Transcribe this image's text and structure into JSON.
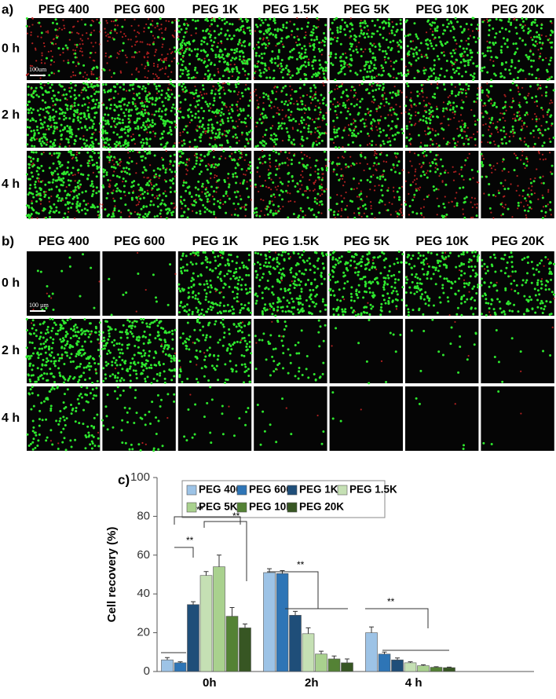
{
  "panel_a": {
    "label": "a)",
    "columns": [
      "PEG 400",
      "PEG 600",
      "PEG 1K",
      "PEG 1.5K",
      "PEG 5K",
      "PEG 10K",
      "PEG 20K"
    ],
    "rows": [
      "0 h",
      "2 h",
      "4 h"
    ],
    "scale_bar": "100um"
  },
  "panel_b": {
    "label": "b)",
    "columns": [
      "PEG 400",
      "PEG 600",
      "PEG 1K",
      "PEG 1.5K",
      "PEG 5K",
      "PEG 10K",
      "PEG 20K"
    ],
    "rows": [
      "0 h",
      "2 h",
      "4 h"
    ],
    "scale_bar": "100 µm"
  },
  "chart_data": {
    "type": "bar",
    "label": "c)",
    "y_label": "Cell recovery (%)",
    "categories": [
      "0h",
      "2h",
      "4 h"
    ],
    "series": [
      {
        "name": "PEG 400",
        "color": "#9dc3e6",
        "values": [
          6,
          51,
          20
        ],
        "errors": [
          1.2,
          2,
          3
        ]
      },
      {
        "name": "PEG 600",
        "color": "#2e75b6",
        "values": [
          4.5,
          50.5,
          9
        ],
        "errors": [
          0.5,
          1.5,
          1
        ]
      },
      {
        "name": "PEG 1K",
        "color": "#1f4e79",
        "values": [
          34.5,
          29,
          6
        ],
        "errors": [
          1.5,
          2,
          1
        ]
      },
      {
        "name": "PEG 1.5K",
        "color": "#c5e0b4",
        "values": [
          49.5,
          19.5,
          4.5
        ],
        "errors": [
          2,
          3,
          0.5
        ]
      },
      {
        "name": "PEG 5K",
        "color": "#a9d18e",
        "values": [
          54,
          9,
          3
        ],
        "errors": [
          6,
          1.5,
          0.5
        ]
      },
      {
        "name": "PEG 10K",
        "color": "#548235",
        "values": [
          28.5,
          6.5,
          2.2
        ],
        "errors": [
          4.5,
          1.5,
          0.3
        ]
      },
      {
        "name": "PEG 20K",
        "color": "#375623",
        "values": [
          22.5,
          4.5,
          2
        ],
        "errors": [
          2,
          2,
          0.3
        ]
      }
    ],
    "ylim": [
      0,
      100
    ],
    "yticks": [
      0,
      20,
      40,
      60,
      80,
      100
    ],
    "annotations": [
      "**",
      "**",
      "**",
      "**",
      "**"
    ]
  }
}
